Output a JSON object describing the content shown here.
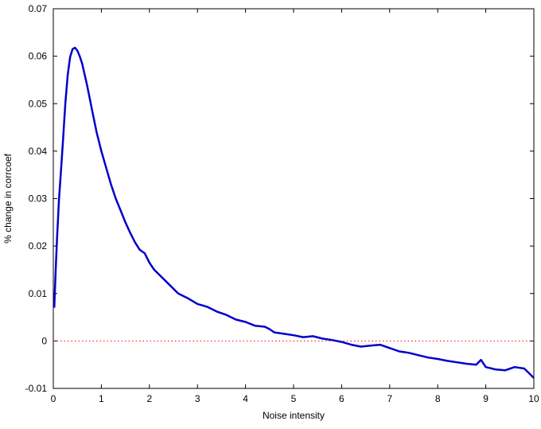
{
  "chart_data": {
    "type": "line",
    "title": "",
    "xlabel": "Noise intensity",
    "ylabel": "% change in corrcoef",
    "xlim": [
      0,
      10
    ],
    "ylim": [
      -0.01,
      0.07
    ],
    "x_ticks": [
      0,
      1,
      2,
      3,
      4,
      5,
      6,
      7,
      8,
      9,
      10
    ],
    "x_tick_labels": [
      "0",
      "1",
      "2",
      "3",
      "4",
      "5",
      "6",
      "7",
      "8",
      "9",
      "10"
    ],
    "y_ticks": [
      -0.01,
      0,
      0.01,
      0.02,
      0.03,
      0.04,
      0.05,
      0.06,
      0.07
    ],
    "y_tick_labels": [
      "-0.01",
      "0",
      "0.01",
      "0.02",
      "0.03",
      "0.04",
      "0.05",
      "0.06",
      "0.07"
    ],
    "grid": false,
    "legend": "none",
    "reference_line": {
      "y": 0,
      "style": "dotted",
      "color": "#ff0000"
    },
    "series": [
      {
        "color": "#0000cc",
        "x": [
          0.02,
          0.05,
          0.08,
          0.12,
          0.16,
          0.2,
          0.25,
          0.3,
          0.35,
          0.4,
          0.45,
          0.5,
          0.55,
          0.6,
          0.7,
          0.8,
          0.9,
          1.0,
          1.1,
          1.2,
          1.3,
          1.4,
          1.5,
          1.6,
          1.7,
          1.8,
          1.9,
          2.0,
          2.1,
          2.2,
          2.4,
          2.6,
          2.8,
          3.0,
          3.2,
          3.4,
          3.6,
          3.8,
          4.0,
          4.2,
          4.4,
          4.5,
          4.6,
          4.8,
          5.0,
          5.2,
          5.4,
          5.6,
          5.8,
          6.0,
          6.2,
          6.4,
          6.6,
          6.8,
          7.0,
          7.2,
          7.4,
          7.6,
          7.8,
          8.0,
          8.2,
          8.4,
          8.6,
          8.8,
          8.9,
          9.0,
          9.2,
          9.4,
          9.6,
          9.8,
          9.9,
          10.0
        ],
        "y": [
          0.007,
          0.015,
          0.022,
          0.03,
          0.036,
          0.042,
          0.05,
          0.056,
          0.0598,
          0.0615,
          0.0618,
          0.0612,
          0.06,
          0.0585,
          0.054,
          0.049,
          0.044,
          0.04,
          0.0365,
          0.033,
          0.03,
          0.0275,
          0.025,
          0.0228,
          0.0208,
          0.0192,
          0.0185,
          0.0165,
          0.015,
          0.014,
          0.012,
          0.01,
          0.009,
          0.0078,
          0.0072,
          0.0062,
          0.0055,
          0.0045,
          0.004,
          0.0032,
          0.003,
          0.0025,
          0.0018,
          0.0015,
          0.0012,
          0.0008,
          0.001,
          0.0005,
          0.0002,
          -0.0002,
          -0.0008,
          -0.0012,
          -0.001,
          -0.0008,
          -0.0015,
          -0.0022,
          -0.0025,
          -0.003,
          -0.0035,
          -0.0038,
          -0.0042,
          -0.0045,
          -0.0048,
          -0.005,
          -0.004,
          -0.0055,
          -0.006,
          -0.0062,
          -0.0055,
          -0.0058,
          -0.0068,
          -0.0078
        ]
      }
    ]
  }
}
